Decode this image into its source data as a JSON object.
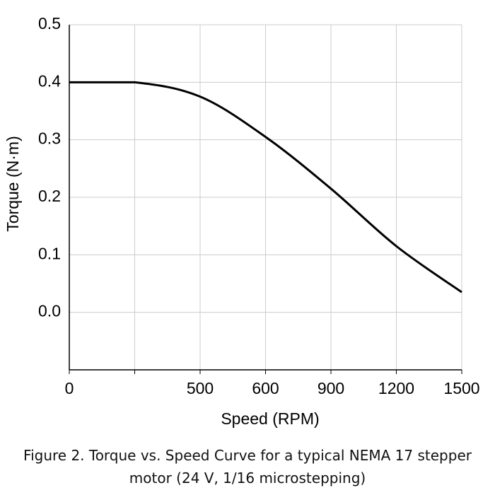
{
  "chart_data": {
    "type": "line",
    "x_label": "Speed (RPM)",
    "y_label": "Torque (N·m)",
    "caption": "Figure 2. Torque vs. Speed Curve for a typical NEMA 17 stepper motor (24 V, 1/16 microstepping)",
    "categories": [
      "0",
      null,
      "500",
      "600",
      "900",
      "1200",
      "1500"
    ],
    "series": [
      {
        "name": "Torque",
        "color": "#000000",
        "values": [
          0.4,
          0.4,
          0.375,
          0.305,
          0.215,
          0.115,
          0.035
        ]
      }
    ],
    "ylim": [
      -0.1,
      0.5
    ],
    "yticks": [
      {
        "value": 0,
        "label": "0.0"
      },
      0.1,
      0.2,
      0.3,
      0.4,
      0.5
    ],
    "grid": true
  }
}
